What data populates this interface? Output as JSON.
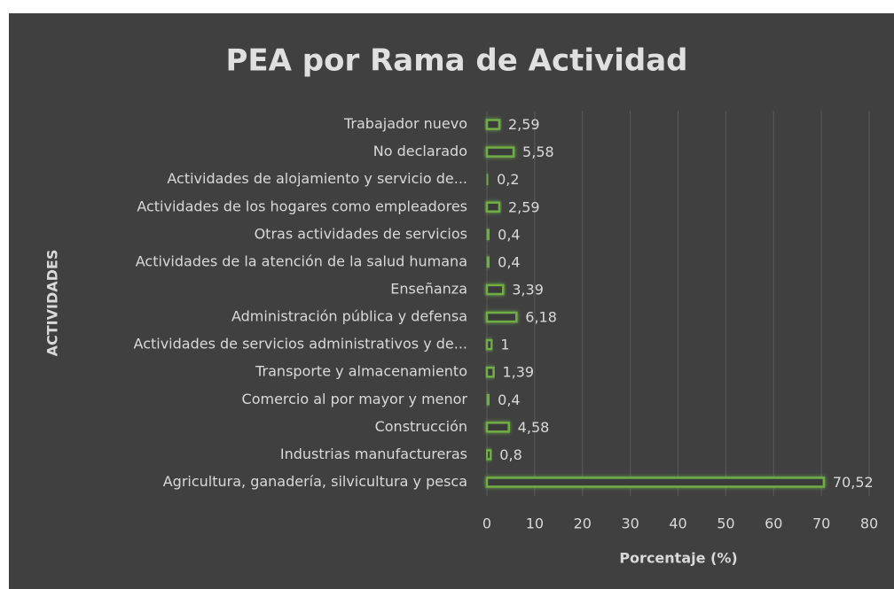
{
  "chart_data": {
    "type": "bar",
    "orientation": "horizontal",
    "title": "PEA por Rama de Actividad",
    "xlabel": "Porcentaje (%)",
    "ylabel": "ACTIVIDADES",
    "categories": [
      "Trabajador nuevo",
      "No declarado",
      "Actividades de alojamiento y servicio de...",
      "Actividades de los hogares como empleadores",
      "Otras actividades de servicios",
      "Actividades de la atención de la salud humana",
      "Enseñanza",
      "Administración pública y defensa",
      "Actividades de servicios administrativos y de...",
      "Transporte y almacenamiento",
      "Comercio al por mayor y menor",
      "Construcción",
      "Industrias manufactureras",
      "Agricultura, ganadería, silvicultura y pesca"
    ],
    "values": [
      2.59,
      5.58,
      0.2,
      2.59,
      0.4,
      0.4,
      3.39,
      6.18,
      1,
      1.39,
      0.4,
      4.58,
      0.8,
      70.52
    ],
    "value_labels": [
      "2,59",
      "5,58",
      "0,2",
      "2,59",
      "0,4",
      "0,4",
      "3,39",
      "6,18",
      "1",
      "1,39",
      "0,4",
      "4,58",
      "0,8",
      "70,52"
    ],
    "color": "#70ad47",
    "xlim": [
      0,
      80
    ],
    "xticks": [
      0,
      10,
      20,
      30,
      40,
      50,
      60,
      70,
      80
    ],
    "grid": true
  }
}
